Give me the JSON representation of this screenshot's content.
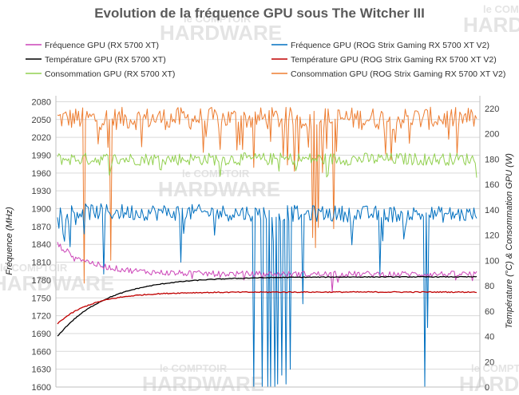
{
  "watermark": {
    "line1": "le COMPTOIR",
    "line2": "HARDWARE"
  },
  "chart_data": {
    "type": "line",
    "title": "Evolution de la fréquence GPU sous The Witcher III",
    "ylabel_left": "Fréquence (MHz)",
    "ylabel_right": "Température (°C) & Consommation GPU (W)",
    "ylim_left": [
      1600,
      2090
    ],
    "yticks_left": [
      1600,
      1630,
      1660,
      1690,
      1720,
      1750,
      1780,
      1810,
      1840,
      1870,
      1900,
      1930,
      1960,
      1990,
      2020,
      2050,
      2080
    ],
    "ylim_right": [
      0,
      230
    ],
    "yticks_right": [
      0,
      20,
      40,
      60,
      80,
      100,
      120,
      140,
      160,
      180,
      200,
      220
    ],
    "x_points": 300,
    "legend": {
      "placement": "top",
      "entries": [
        "Fréquence GPU (RX 5700 XT)",
        "Fréquence GPU (ROG Strix Gaming RX 5700 XT V2)",
        "Température GPU  (RX 5700 XT)",
        "Température GPU (ROG Strix Gaming RX 5700 XT V2)",
        "Consommation GPU (RX 5700 XT)",
        "Consommation GPU (ROG Strix Gaming RX 5700 XT V2)"
      ]
    },
    "series": [
      {
        "key": "orange",
        "name": "Consommation GPU (ROG Strix Gaming RX 5700 XT V2)",
        "axis": "right",
        "color": "#ed7d31",
        "model": {
          "start": 212,
          "end": 212,
          "noise": 9,
          "dips": [
            [
              19,
              82
            ],
            [
              38,
              100
            ],
            [
              182,
              118
            ],
            [
              184,
              110
            ],
            [
              186,
              126
            ],
            [
              197,
              125
            ]
          ],
          "dip_prob": 0.09,
          "dip_depth": 25
        }
      },
      {
        "key": "green",
        "name": "Consommation GPU (RX 5700 XT)",
        "axis": "right",
        "color": "#92d050",
        "model": {
          "start": 180,
          "end": 180,
          "noise": 5,
          "dips": [],
          "dip_prob": 0.04,
          "dip_depth": 8
        }
      },
      {
        "key": "blue",
        "name": "Fréquence GPU (ROG Strix Gaming RX 5700 XT V2)",
        "axis": "left",
        "color": "#0070c0",
        "model": {
          "start": 1895,
          "end": 1890,
          "noise": 14,
          "dips": [
            [
              140,
              1600
            ],
            [
              146,
              1600
            ],
            [
              150,
              1600
            ],
            [
              152,
              1600
            ],
            [
              155,
              1600
            ],
            [
              157,
              1605
            ],
            [
              160,
              1620
            ],
            [
              163,
              1605
            ],
            [
              166,
              1630
            ],
            [
              175,
              1740
            ],
            [
              230,
              1790
            ],
            [
              262,
              1600
            ],
            [
              264,
              1700
            ],
            [
              33,
              1790
            ],
            [
              88,
              1810
            ]
          ],
          "dip_prob": 0.05,
          "dip_depth": 35
        }
      },
      {
        "key": "magenta",
        "name": "Fréquence GPU (RX 5700 XT)",
        "axis": "left",
        "color": "#cc44b8",
        "model": {
          "start": 1840,
          "end": 1790,
          "noise": 5,
          "decay": 25,
          "dips": [
            [
              196,
              1760
            ]
          ],
          "dip_prob": 0.03,
          "dip_depth": 8
        }
      },
      {
        "key": "black",
        "name": "Température GPU  (RX 5700 XT)",
        "axis": "right",
        "color": "#000000",
        "model": {
          "start": 40,
          "end": 87,
          "noise": 0.3,
          "decay": 35,
          "dips": [],
          "dip_prob": 0,
          "dip_depth": 0
        }
      },
      {
        "key": "red",
        "name": "Température GPU (ROG Strix Gaming RX 5700 XT V2)",
        "axis": "right",
        "color": "#c00000",
        "model": {
          "start": 50,
          "end": 75,
          "noise": 0.4,
          "decay": 25,
          "dips": [],
          "dip_prob": 0,
          "dip_depth": 0
        }
      }
    ]
  }
}
